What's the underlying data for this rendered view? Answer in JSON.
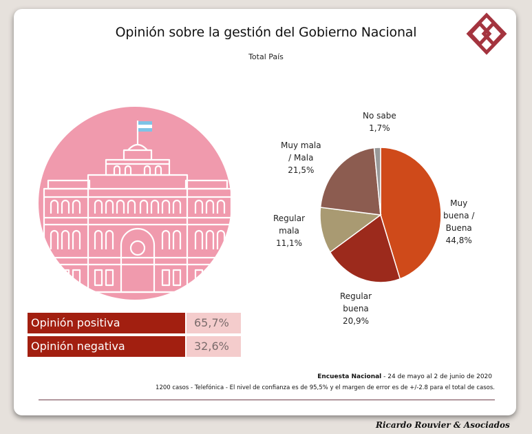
{
  "header": {
    "title": "Opinión sobre la gestión del Gobierno Nacional",
    "subtitle": "Total País"
  },
  "colors": {
    "accent": "#a21f10",
    "value_bg": "#f4cccc",
    "building_circle": "#f09aad"
  },
  "chart_data": {
    "type": "pie",
    "labels": [
      "Muy buena / Buena",
      "Regular buena",
      "Regular mala",
      "Muy mala / Mala",
      "No sabe"
    ],
    "values": [
      44.8,
      20.9,
      11.1,
      21.5,
      1.7
    ],
    "colors": [
      "#cf4a1a",
      "#9c2a1c",
      "#a99a72",
      "#8c5c50",
      "#999999"
    ],
    "slices": [
      {
        "label_lines": [
          "Muy",
          "buena /",
          "Buena"
        ],
        "value_text": "44,8%"
      },
      {
        "label_lines": [
          "Regular",
          "buena"
        ],
        "value_text": "20,9%"
      },
      {
        "label_lines": [
          "Regular",
          "mala"
        ],
        "value_text": "11,1%"
      },
      {
        "label_lines": [
          "Muy mala",
          "/ Mala"
        ],
        "value_text": "21,5%"
      },
      {
        "label_lines": [
          "No sabe"
        ],
        "value_text": "1,7%"
      }
    ]
  },
  "opinion": [
    {
      "label": "Opinión positiva",
      "value": "65,7%"
    },
    {
      "label": "Opinión negativa",
      "value": "32,6%"
    }
  ],
  "footer": {
    "survey_name": "Encuesta Nacional",
    "survey_dates": " - 24 de mayo al 2 de junio de 2020",
    "methodology": "1200 casos - Telefónica   - El nivel de confianza es de 95,5% y el margen de error es de +/-2.8 para el total de casos.",
    "signature": "Ricardo Rouvier & Asociados"
  }
}
